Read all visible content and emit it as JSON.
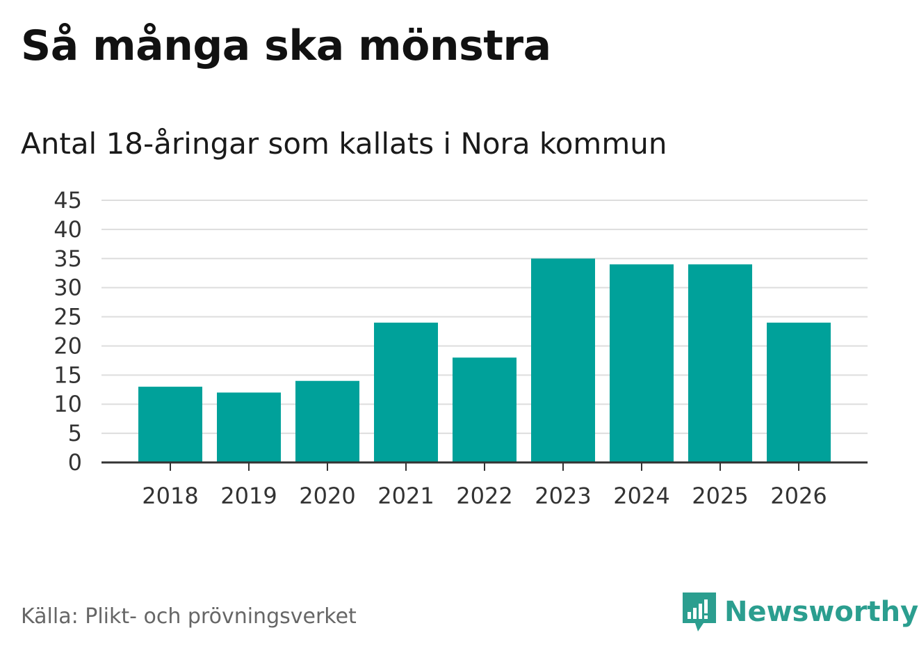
{
  "title": "Så många ska mönstra",
  "subtitle": "Antal 18-åringar som kallats i Nora kommun",
  "source": "Källa: Plikt- och prövningsverket",
  "logo": {
    "icon": "newsworthy-logo-icon",
    "text": "Newsworthy",
    "color": "#2b9e8f"
  },
  "colors": {
    "bar": "#00a19a",
    "grid": "#dddddd",
    "axis": "#333333"
  },
  "chart_data": {
    "type": "bar",
    "title": "Så många ska mönstra",
    "subtitle": "Antal 18-åringar som kallats i Nora kommun",
    "xlabel": "",
    "ylabel": "",
    "categories": [
      "2018",
      "2019",
      "2020",
      "2021",
      "2022",
      "2023",
      "2024",
      "2025",
      "2026"
    ],
    "values": [
      13,
      12,
      14,
      24,
      18,
      35,
      34,
      34,
      24
    ],
    "ylim": [
      0,
      45
    ],
    "yticks": [
      0,
      5,
      10,
      15,
      20,
      25,
      30,
      35,
      40,
      45
    ],
    "grid": true,
    "legend": "none"
  }
}
